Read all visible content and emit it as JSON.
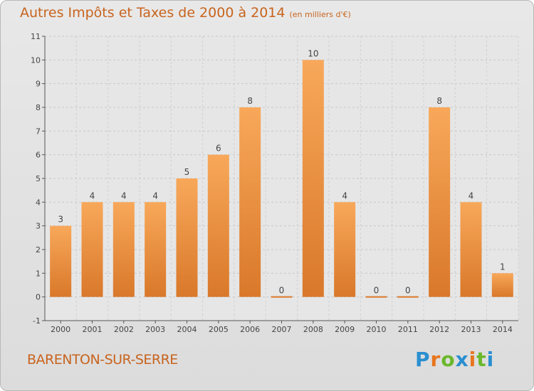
{
  "title": "Autres Impôts et Taxes de 2000 à 2014",
  "subtitle": "(en milliers d'€)",
  "commune": "BARENTON-SUR-SERRE",
  "logo": {
    "text": "Proxiti",
    "colors": [
      "#2a8fd0",
      "#e8761e",
      "#6ab82c",
      "#2a8fd0",
      "#e8761e",
      "#6ab82c",
      "#2a8fd0"
    ]
  },
  "colors": {
    "accent": "#c8641e",
    "bar_light": "#f8a85a",
    "bar_dark": "#d9782a"
  },
  "chart_data": {
    "type": "bar",
    "categories": [
      "2000",
      "2001",
      "2002",
      "2003",
      "2004",
      "2005",
      "2006",
      "2007",
      "2008",
      "2009",
      "2010",
      "2011",
      "2012",
      "2013",
      "2014"
    ],
    "values": [
      3,
      4,
      4,
      4,
      5,
      6,
      8,
      0,
      10,
      4,
      0,
      0,
      8,
      4,
      1
    ],
    "ylim": [
      -1,
      11
    ],
    "yticks": [
      "-1",
      "0",
      "1",
      "2",
      "3",
      "4",
      "5",
      "6",
      "7",
      "8",
      "9",
      "10",
      "11"
    ],
    "grid": true
  }
}
